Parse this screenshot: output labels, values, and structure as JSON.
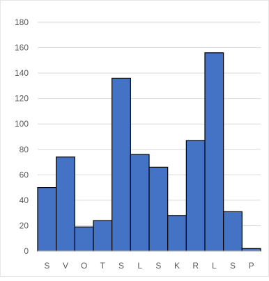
{
  "chart_data": {
    "type": "bar",
    "categories": [
      "S",
      "V",
      "O",
      "T",
      "S",
      "L",
      "S",
      "K",
      "R",
      "L",
      "S",
      "P"
    ],
    "values": [
      50,
      74,
      19,
      24,
      136,
      76,
      66,
      28,
      87,
      156,
      31,
      2
    ],
    "ylim": [
      0,
      180
    ],
    "yticks": [
      0,
      20,
      40,
      60,
      80,
      100,
      120,
      140,
      160,
      180
    ],
    "grid": true,
    "bar_color": "#4472c4",
    "bar_edge_color": "#000000",
    "gridline_color": "#d9d9d9",
    "title": "",
    "xlabel": "",
    "ylabel": ""
  }
}
